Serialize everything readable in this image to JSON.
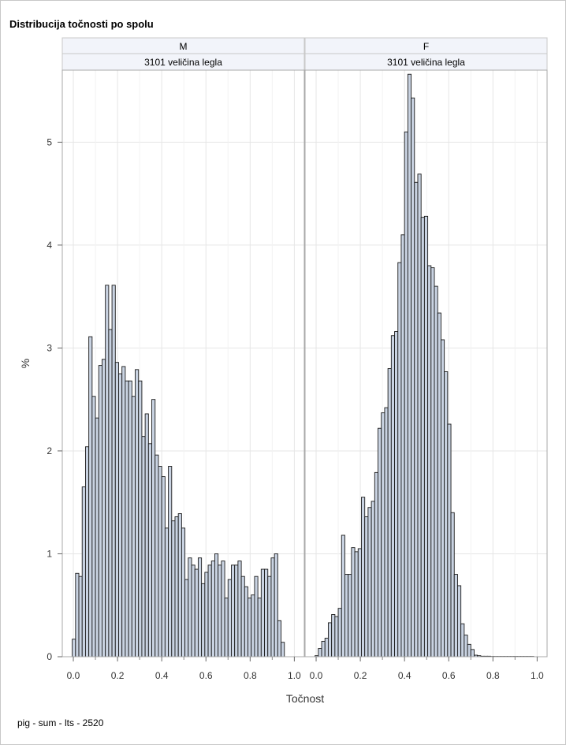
{
  "chart_data": {
    "type": "bar",
    "subtype": "histogram-panel",
    "title": "Distribucija točnosti po spolu",
    "xlabel": "Točnost",
    "ylabel": "%",
    "footnote": "pig - sum - lts - 2520",
    "xlim": [
      -0.05,
      1.045
    ],
    "ylim": [
      0,
      5.7
    ],
    "xticks": [
      "0.0",
      "0.2",
      "0.4",
      "0.6",
      "0.8",
      "1.0"
    ],
    "xticks_minor": [
      0.1,
      0.3,
      0.5,
      0.7,
      0.9
    ],
    "yticks": [
      "0",
      "1",
      "2",
      "3",
      "4",
      "5"
    ],
    "grid": true,
    "bin_width": 0.015,
    "bin_start": -0.005,
    "colors": {
      "bar_fill": "#c9d3e2",
      "bar_stroke": "#1a1a1a",
      "grid": "#e6e6e6",
      "header_bg": "#f2f4fa",
      "border": "#a8a8a8"
    },
    "panels": [
      {
        "label": "M",
        "sublabel": "3101 veličina legla",
        "values": [
          0.17,
          0.81,
          0.78,
          1.65,
          2.04,
          3.11,
          2.53,
          2.32,
          2.83,
          2.89,
          3.61,
          3.18,
          3.61,
          2.86,
          2.75,
          2.82,
          2.68,
          2.68,
          2.53,
          2.79,
          2.68,
          2.14,
          2.36,
          2.07,
          2.5,
          1.96,
          1.85,
          1.75,
          1.25,
          1.85,
          1.32,
          1.36,
          1.39,
          1.25,
          0.75,
          0.96,
          0.89,
          0.85,
          0.96,
          0.71,
          0.82,
          0.89,
          0.93,
          1.0,
          0.89,
          0.93,
          0.57,
          0.75,
          0.89,
          0.89,
          0.93,
          0.78,
          0.68,
          0.57,
          0.6,
          0.78,
          0.57,
          0.85,
          0.85,
          0.78,
          0.96,
          1.0,
          0.35,
          0.14
        ]
      },
      {
        "label": "F",
        "sublabel": "3101 veličina legla",
        "values": [
          0.01,
          0.08,
          0.15,
          0.18,
          0.33,
          0.41,
          0.39,
          0.47,
          1.18,
          0.8,
          0.8,
          1.06,
          1.02,
          1.05,
          1.55,
          1.36,
          1.45,
          1.51,
          1.79,
          2.22,
          2.37,
          2.42,
          2.8,
          3.12,
          3.16,
          3.83,
          4.1,
          5.1,
          5.66,
          5.43,
          4.61,
          4.69,
          4.27,
          4.28,
          3.8,
          3.78,
          3.6,
          3.34,
          3.08,
          2.77,
          2.26,
          1.4,
          0.8,
          0.69,
          0.32,
          0.21,
          0.12,
          0.07,
          0.015,
          0.01,
          0.005,
          0.005,
          0.005,
          0.003,
          0.003,
          0.003,
          0.003,
          0.003,
          0.003,
          0.003,
          0.003,
          0.003,
          0.003,
          0.003,
          0.003,
          0.003
        ]
      }
    ]
  }
}
